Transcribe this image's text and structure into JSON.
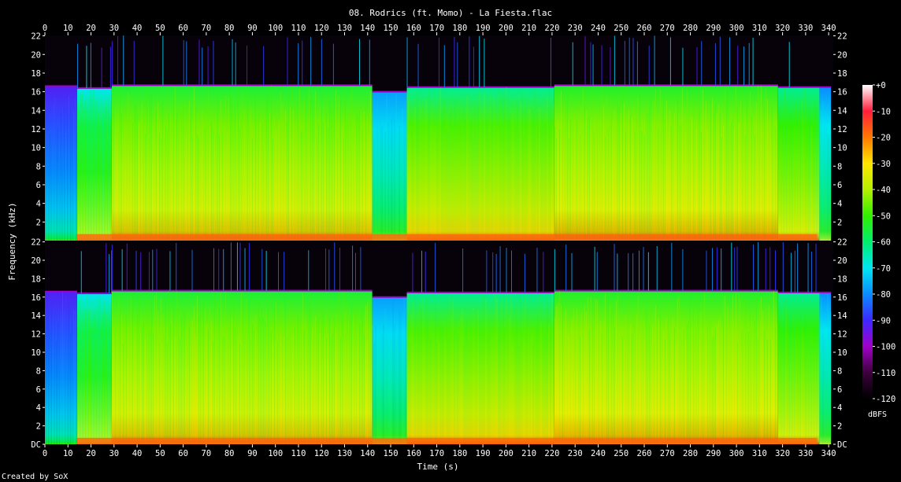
{
  "chart_data": {
    "type": "heatmap",
    "title": "08. Rodrics (ft. Momo) - La Fiesta.flac",
    "xlabel": "Time (s)",
    "ylabel": "Frequency (kHz)",
    "footer": "Created by SoX",
    "xlim": [
      0,
      342
    ],
    "ylim": [
      0,
      22.05
    ],
    "channels": 2,
    "x_ticks": [
      0,
      10,
      20,
      30,
      40,
      50,
      60,
      70,
      80,
      90,
      100,
      110,
      120,
      130,
      140,
      150,
      160,
      170,
      180,
      190,
      200,
      210,
      220,
      230,
      240,
      250,
      260,
      270,
      280,
      290,
      300,
      310,
      320,
      330,
      340
    ],
    "y_ticks": [
      {
        "value": 0,
        "label": "DC"
      },
      {
        "value": 2,
        "label": "2"
      },
      {
        "value": 4,
        "label": "4"
      },
      {
        "value": 6,
        "label": "6"
      },
      {
        "value": 8,
        "label": "8"
      },
      {
        "value": 10,
        "label": "10"
      },
      {
        "value": 12,
        "label": "12"
      },
      {
        "value": 14,
        "label": "14"
      },
      {
        "value": 16,
        "label": "16"
      },
      {
        "value": 18,
        "label": "18"
      },
      {
        "value": 20,
        "label": "20"
      },
      {
        "value": 22,
        "label": "22"
      }
    ],
    "colorbar": {
      "label": "dBFS",
      "range": [
        -120,
        0
      ],
      "ticks": [
        {
          "value": 0,
          "label": "+0"
        },
        {
          "value": -10,
          "label": "-10"
        },
        {
          "value": -20,
          "label": "-20"
        },
        {
          "value": -30,
          "label": "-30"
        },
        {
          "value": -40,
          "label": "-40"
        },
        {
          "value": -50,
          "label": "-50"
        },
        {
          "value": -60,
          "label": "-60"
        },
        {
          "value": -70,
          "label": "-70"
        },
        {
          "value": -80,
          "label": "-80"
        },
        {
          "value": -90,
          "label": "-90"
        },
        {
          "value": -100,
          "label": "-100"
        },
        {
          "value": -110,
          "label": "-110"
        },
        {
          "value": -120,
          "label": "-120"
        }
      ],
      "stops": [
        {
          "db": -120,
          "color": "#000000"
        },
        {
          "db": -110,
          "color": "#3c003c"
        },
        {
          "db": -100,
          "color": "#a000c8"
        },
        {
          "db": -90,
          "color": "#3c28ff"
        },
        {
          "db": -80,
          "color": "#0a8cff"
        },
        {
          "db": -70,
          "color": "#00e6f0"
        },
        {
          "db": -60,
          "color": "#00f06e"
        },
        {
          "db": -50,
          "color": "#32f000"
        },
        {
          "db": -40,
          "color": "#b4f000"
        },
        {
          "db": -30,
          "color": "#ffe600"
        },
        {
          "db": -20,
          "color": "#ff7800"
        },
        {
          "db": -10,
          "color": "#ff1e3c"
        },
        {
          "db": 0,
          "color": "#ffffff"
        }
      ]
    },
    "sections": [
      {
        "start": 0,
        "end": 14,
        "cutoff_khz": 16.6,
        "body_db": -88,
        "high_db": -92
      },
      {
        "start": 14,
        "end": 29,
        "cutoff_khz": 16.4,
        "body_db": -58,
        "high_db": -70
      },
      {
        "start": 29,
        "end": 142,
        "cutoff_khz": 16.7,
        "body_db": -47,
        "high_db": -55
      },
      {
        "start": 142,
        "end": 157,
        "cutoff_khz": 16.0,
        "body_db": -73,
        "high_db": -78
      },
      {
        "start": 157,
        "end": 221,
        "cutoff_khz": 16.5,
        "body_db": -50,
        "high_db": -63
      },
      {
        "start": 221,
        "end": 318,
        "cutoff_khz": 16.7,
        "body_db": -46,
        "high_db": -54
      },
      {
        "start": 318,
        "end": 336,
        "cutoff_khz": 16.5,
        "body_db": -52,
        "high_db": -63
      },
      {
        "start": 336,
        "end": 341,
        "cutoff_khz": 16.5,
        "body_db": -72,
        "high_db": -80
      }
    ]
  }
}
